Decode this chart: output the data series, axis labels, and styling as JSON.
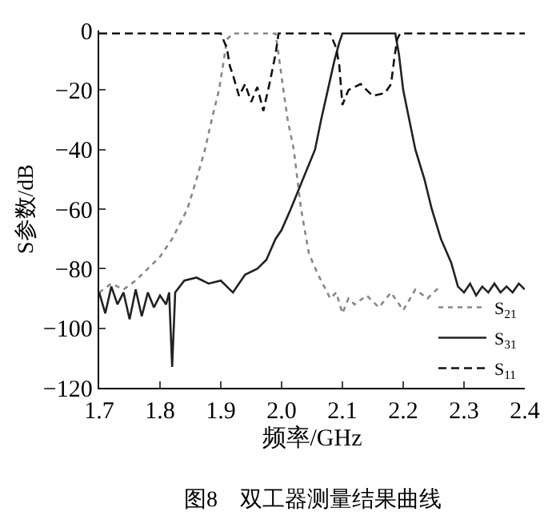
{
  "chart_data": {
    "type": "line",
    "xlabel": "频率/GHz",
    "ylabel": "S参数/dB",
    "annotations": [
      "图8　双工器测量结果曲线"
    ],
    "xlim": [
      1.7,
      2.4
    ],
    "xticks": [
      1.7,
      1.8,
      1.9,
      {
        "value": 2.0,
        "label": "2.0"
      },
      2.1,
      2.2,
      2.3,
      2.4
    ],
    "ylim": [
      -120,
      0
    ],
    "yticks": [
      -120,
      -100,
      -80,
      -60,
      -40,
      -20,
      0
    ],
    "legend": "bottom right",
    "series": [
      {
        "name": "S$_{21}$",
        "color": "#888888",
        "line_style": "dotted",
        "x": [
          1.7,
          1.72,
          1.74,
          1.76,
          1.78,
          1.8,
          1.82,
          1.845,
          1.86,
          1.874,
          1.885,
          1.897,
          1.905,
          1.91,
          1.92,
          1.95,
          1.99,
          1.995,
          2.003,
          2.01,
          2.02,
          2.032,
          2.045,
          2.06,
          2.07,
          2.08,
          2.09,
          2.1,
          2.11,
          2.12,
          2.14,
          2.16,
          2.18,
          2.2,
          2.22,
          2.24,
          2.26
        ],
        "values": [
          -88,
          -85,
          -87,
          -84,
          -80,
          -76,
          -70,
          -60,
          -50,
          -40,
          -30,
          -20,
          -10,
          -3,
          -1,
          -1,
          -1,
          -8,
          -20,
          -30,
          -40,
          -60,
          -75,
          -82,
          -86,
          -90,
          -88,
          -95,
          -90,
          -92,
          -89,
          -93,
          -88,
          -94,
          -87,
          -90,
          -86
        ]
      },
      {
        "name": "S$_{31}$",
        "color": "#222222",
        "line_style": "solid",
        "x": [
          1.7,
          1.71,
          1.72,
          1.73,
          1.74,
          1.75,
          1.76,
          1.77,
          1.78,
          1.79,
          1.8,
          1.81,
          1.815,
          1.82,
          1.825,
          1.84,
          1.86,
          1.88,
          1.9,
          1.92,
          1.94,
          1.96,
          1.975,
          1.99,
          2.0,
          2.015,
          2.035,
          2.055,
          2.065,
          2.076,
          2.087,
          2.095,
          2.1,
          2.15,
          2.187,
          2.193,
          2.2,
          2.21,
          2.22,
          2.235,
          2.247,
          2.262,
          2.279,
          2.29,
          2.3,
          2.31,
          2.32,
          2.33,
          2.34,
          2.35,
          2.36,
          2.37,
          2.38,
          2.39,
          2.4
        ],
        "values": [
          -88,
          -95,
          -86,
          -92,
          -88,
          -97,
          -87,
          -96,
          -88,
          -93,
          -89,
          -92,
          -88,
          -113,
          -88,
          -84,
          -83,
          -85,
          -84,
          -88,
          -82,
          -80,
          -77,
          -70,
          -67,
          -60,
          -50,
          -40,
          -30,
          -20,
          -10,
          -4,
          -1,
          -1,
          -1,
          -8,
          -20,
          -30,
          -40,
          -50,
          -60,
          -70,
          -78,
          -86,
          -88,
          -85,
          -89,
          -86,
          -88,
          -85,
          -88,
          -86,
          -88,
          -85,
          -87
        ]
      },
      {
        "name": "S$_{11}$",
        "color": "#111111",
        "line_style": "dashed",
        "x": [
          1.7,
          1.9,
          1.91,
          1.915,
          1.92,
          1.93,
          1.94,
          1.95,
          1.96,
          1.97,
          1.98,
          1.99,
          1.995,
          2.08,
          2.09,
          2.095,
          2.1,
          2.11,
          2.13,
          2.15,
          2.17,
          2.18,
          2.185,
          2.19,
          2.195,
          2.4
        ],
        "values": [
          -1,
          -1,
          -6,
          -12,
          -15,
          -22,
          -18,
          -24,
          -19,
          -27,
          -18,
          -8,
          -1,
          -1,
          -6,
          -12,
          -25,
          -20,
          -18,
          -22,
          -21,
          -18,
          -10,
          -3,
          -1,
          -1
        ]
      }
    ]
  }
}
